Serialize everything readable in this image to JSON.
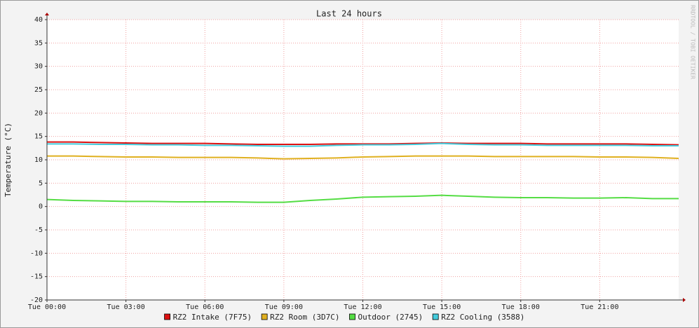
{
  "chart_data": {
    "type": "line",
    "title": "Last 24 hours",
    "y_label": "Temperature (°C)",
    "watermark": "RRDTOOL / TOBI OETIKER",
    "x": [
      0,
      1,
      2,
      3,
      4,
      5,
      6,
      7,
      8,
      9,
      10,
      11,
      12,
      13,
      14,
      15,
      16,
      17,
      18,
      19,
      20,
      21,
      22,
      23,
      24
    ],
    "xlim": [
      0,
      24
    ],
    "xticks": [
      {
        "value": 0,
        "label": "Tue 00:00"
      },
      {
        "value": 3,
        "label": "Tue 03:00"
      },
      {
        "value": 6,
        "label": "Tue 06:00"
      },
      {
        "value": 9,
        "label": "Tue 09:00"
      },
      {
        "value": 12,
        "label": "Tue 12:00"
      },
      {
        "value": 15,
        "label": "Tue 15:00"
      },
      {
        "value": 18,
        "label": "Tue 18:00"
      },
      {
        "value": 21,
        "label": "Tue 21:00"
      }
    ],
    "ylim": [
      -20,
      40
    ],
    "yticks": [
      -20,
      -15,
      -10,
      -5,
      0,
      5,
      10,
      15,
      20,
      25,
      30,
      35,
      40
    ],
    "grid": true,
    "series": [
      {
        "name": "RZ2 Intake (7F75)",
        "color": "#dd1111",
        "values": [
          13.8,
          13.8,
          13.7,
          13.6,
          13.5,
          13.5,
          13.5,
          13.4,
          13.3,
          13.3,
          13.3,
          13.4,
          13.4,
          13.4,
          13.5,
          13.6,
          13.5,
          13.5,
          13.5,
          13.4,
          13.4,
          13.4,
          13.4,
          13.3,
          13.2
        ]
      },
      {
        "name": "RZ2 Room (3D7C)",
        "color": "#e0b020",
        "values": [
          10.8,
          10.8,
          10.7,
          10.6,
          10.6,
          10.5,
          10.5,
          10.5,
          10.4,
          10.2,
          10.3,
          10.4,
          10.6,
          10.7,
          10.8,
          10.8,
          10.8,
          10.7,
          10.7,
          10.7,
          10.7,
          10.6,
          10.6,
          10.5,
          10.3
        ]
      },
      {
        "name": "Outdoor (2745)",
        "color": "#55dd44",
        "values": [
          1.5,
          1.3,
          1.2,
          1.1,
          1.1,
          1.0,
          1.0,
          1.0,
          0.9,
          0.9,
          1.3,
          1.6,
          2.0,
          2.1,
          2.2,
          2.4,
          2.2,
          2.0,
          1.9,
          1.9,
          1.8,
          1.8,
          1.9,
          1.7,
          1.7
        ]
      },
      {
        "name": "RZ2 Cooling (3588)",
        "color": "#44ccdd",
        "values": [
          13.4,
          13.4,
          13.3,
          13.3,
          13.2,
          13.2,
          13.1,
          13.1,
          13.0,
          12.9,
          12.9,
          13.1,
          13.2,
          13.2,
          13.3,
          13.5,
          13.3,
          13.2,
          13.2,
          13.1,
          13.1,
          13.1,
          13.1,
          13.0,
          13.0
        ]
      }
    ]
  }
}
